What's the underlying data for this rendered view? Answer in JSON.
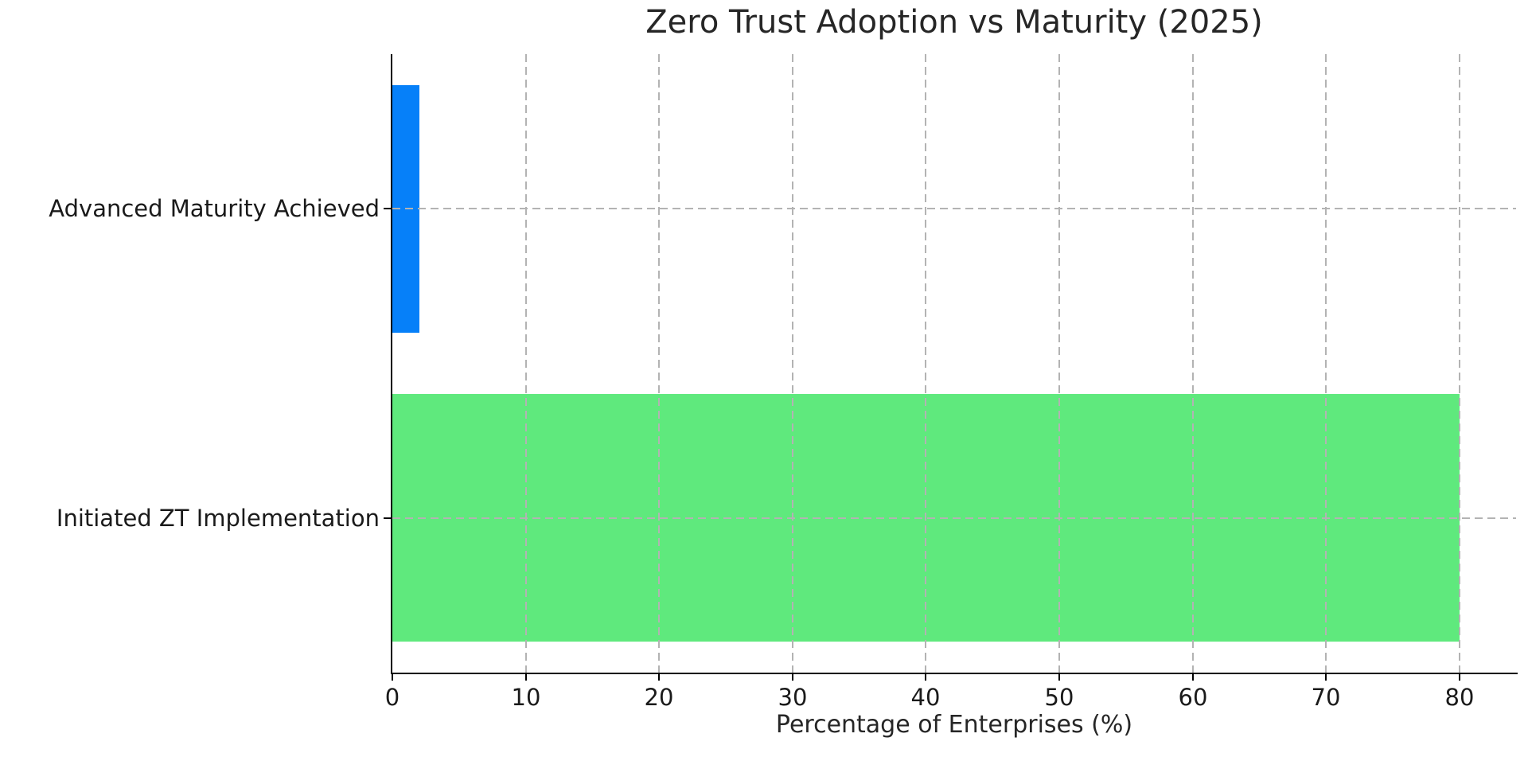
{
  "chart_data": {
    "type": "bar",
    "orientation": "horizontal",
    "title": "Zero Trust Adoption vs Maturity (2025)",
    "xlabel": "Percentage of Enterprises (%)",
    "ylabel": "",
    "categories": [
      "Advanced Maturity Achieved",
      "Initiated ZT Implementation"
    ],
    "values": [
      2,
      80
    ],
    "bar_colors": [
      "#0680f9",
      "#5fe97d"
    ],
    "xticks": [
      0,
      10,
      20,
      30,
      40,
      50,
      60,
      70,
      80
    ],
    "xlim": [
      0,
      84.25
    ],
    "grid": "dashed, drawn above bars, vertical at each xtick and horizontal at each category center",
    "grid_color": "#b3b3b3",
    "axis_color": "#000000",
    "text_color": "#262626",
    "background_color": "#ffffff",
    "legend": "none",
    "value_labels": "none"
  }
}
